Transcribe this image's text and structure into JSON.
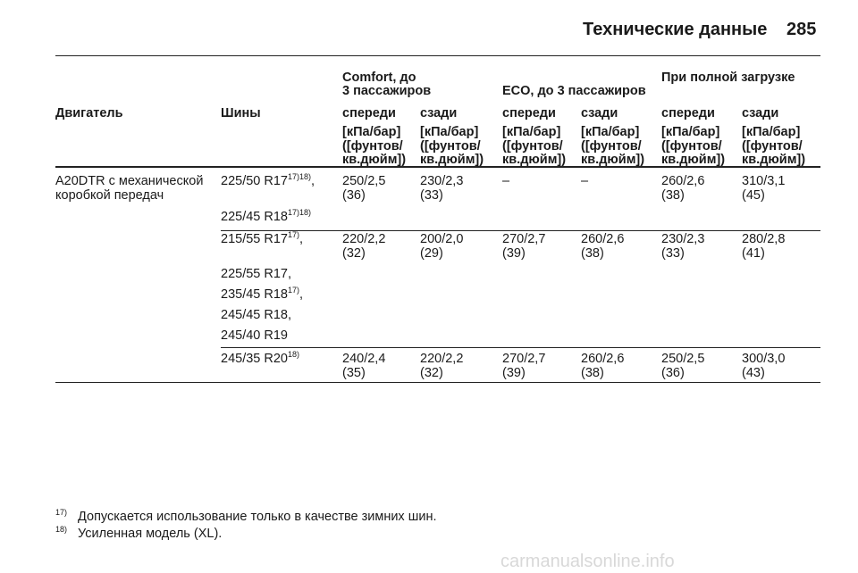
{
  "header": {
    "title": "Технические данные",
    "page": "285"
  },
  "table": {
    "group_headers": [
      [
        "Comfort, до",
        "3 пассажиров"
      ],
      [
        "ECO, до 3 пассажиров"
      ],
      [
        "При полной загрузке"
      ]
    ],
    "columns": [
      "Двигатель",
      "Шины",
      "спереди",
      "сзади",
      "спереди",
      "сзади",
      "спереди",
      "сзади"
    ],
    "units": [
      [
        "[кПа/бар]",
        "([фунтов/",
        "кв.дюйм])"
      ],
      [
        "[кПа/бар]",
        "([фунтов/",
        "кв.дюйм])"
      ],
      [
        "[кПа/бар]",
        "([фунтов/",
        "кв.дюйм])"
      ],
      [
        "[кПа/бар]",
        "([фунтов/",
        "кв.дюйм])"
      ],
      [
        "[кПа/бар]",
        "([фунтов/",
        "кв.дюйм])"
      ],
      [
        "[кПа/бар]",
        "([фунтов/",
        "кв.дюйм])"
      ]
    ],
    "engine": [
      "A20DTR с механической",
      "коробкой передач"
    ],
    "groups": [
      {
        "tires": [
          {
            "text": "225/50 R17",
            "sup": "17)18)",
            "tail": ","
          },
          {
            "text": "225/45 R18",
            "sup": "17)18)"
          }
        ],
        "values": [
          {
            "main": "250/2,5",
            "psi": "(36)"
          },
          {
            "main": "230/2,3",
            "psi": "(33)"
          },
          {
            "main": "–"
          },
          {
            "main": "–"
          },
          {
            "main": "260/2,6",
            "psi": "(38)"
          },
          {
            "main": "310/3,1",
            "psi": "(45)"
          }
        ]
      },
      {
        "tires": [
          {
            "text": "215/55 R17",
            "sup": "17)",
            "tail": ","
          },
          {
            "text": "225/55 R17,"
          },
          {
            "text": "235/45 R18",
            "sup": "17)",
            "tail": ","
          },
          {
            "text": "245/45 R18,"
          },
          {
            "text": "245/40 R19"
          }
        ],
        "values": [
          {
            "main": "220/2,2",
            "psi": "(32)"
          },
          {
            "main": "200/2,0",
            "psi": "(29)"
          },
          {
            "main": "270/2,7",
            "psi": "(39)"
          },
          {
            "main": "260/2,6",
            "psi": "(38)"
          },
          {
            "main": "230/2,3",
            "psi": "(33)"
          },
          {
            "main": "280/2,8",
            "psi": "(41)"
          }
        ]
      },
      {
        "tires": [
          {
            "text": "245/35 R20",
            "sup": "18)"
          }
        ],
        "values": [
          {
            "main": "240/2,4",
            "psi": "(35)"
          },
          {
            "main": "220/2,2",
            "psi": "(32)"
          },
          {
            "main": "270/2,7",
            "psi": "(39)"
          },
          {
            "main": "260/2,6",
            "psi": "(38)"
          },
          {
            "main": "250/2,5",
            "psi": "(36)"
          },
          {
            "main": "300/3,0",
            "psi": "(43)"
          }
        ]
      }
    ]
  },
  "footnotes": [
    {
      "mark": "17)",
      "text": "Допускается использование только в качестве зимних шин."
    },
    {
      "mark": "18)",
      "text": "Усиленная модель (XL)."
    }
  ],
  "watermark": "carmanualsonline.info"
}
